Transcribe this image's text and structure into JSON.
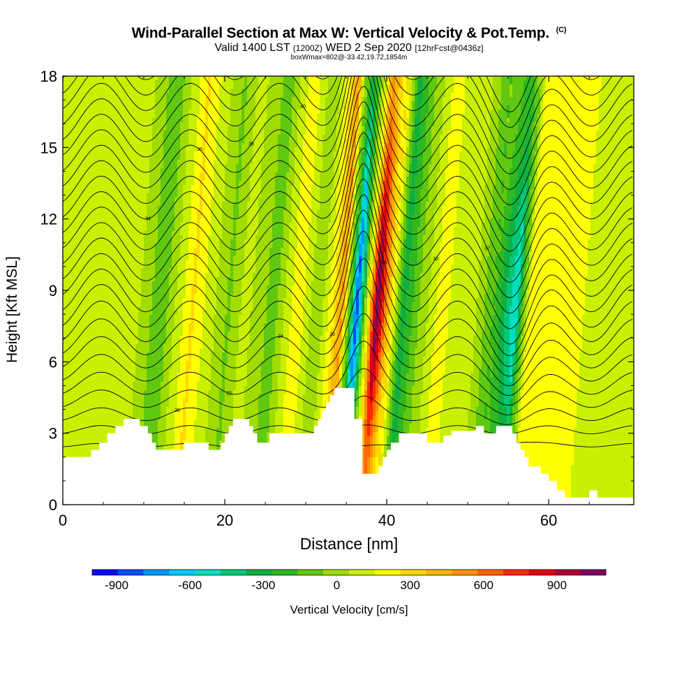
{
  "title": {
    "main": "Wind-Parallel Section at Max W: Vertical Velocity & Pot.Temp.",
    "copyright": "(C)",
    "valid_prefix": "Valid 1400 LST",
    "valid_utc": "(1200Z)",
    "valid_date": "WED 2 Sep 2020",
    "forecast": "[12hrFcst@0436z]",
    "box": "boxWmax=802@-33.42,19.72,1854m"
  },
  "colors": {
    "background": "#ffffff",
    "terrain": "#ffffff",
    "contour": "#000000",
    "palette": [
      "#0a0aff",
      "#0050ff",
      "#0096ff",
      "#00c8ff",
      "#00e0c0",
      "#00c878",
      "#10b040",
      "#30b820",
      "#60c810",
      "#a0dc00",
      "#c8f000",
      "#ffff00",
      "#ffd800",
      "#ffb400",
      "#ff9000",
      "#ff6400",
      "#ff2800",
      "#e00010",
      "#b00030",
      "#800060"
    ]
  },
  "chart_data": {
    "type": "contour-section",
    "title": "Wind-Parallel Section at Max W: Vertical Velocity & Pot.Temp.",
    "xlabel": "Distance [nm]",
    "ylabel": "Height [Kft MSL]",
    "xlim": [
      0,
      70.5
    ],
    "ylim": [
      0,
      18
    ],
    "x_ticks": [
      "0",
      "20",
      "40",
      "60"
    ],
    "y_ticks": [
      "0",
      "3",
      "6",
      "9",
      "12",
      "15",
      "18"
    ],
    "colorbar": {
      "label": "Vertical Velocity [cm/s]",
      "range": [
        -1000,
        1100
      ],
      "step": 100,
      "tick_labels": [
        "-900",
        "-600",
        "-300",
        "0",
        "300",
        "600",
        "900"
      ],
      "tick_values": [
        -900,
        -600,
        -300,
        0,
        300,
        600,
        900
      ]
    },
    "terrain_kft": [
      [
        0,
        2
      ],
      [
        3.5,
        2
      ],
      [
        3.5,
        2.3
      ],
      [
        4.5,
        2.3
      ],
      [
        4.5,
        2.6
      ],
      [
        5.5,
        2.6
      ],
      [
        5.5,
        3
      ],
      [
        6.5,
        3
      ],
      [
        6.5,
        3.3
      ],
      [
        7.5,
        3.3
      ],
      [
        7.5,
        3.6
      ],
      [
        9.5,
        3.6
      ],
      [
        9.5,
        3.3
      ],
      [
        10.5,
        3.3
      ],
      [
        10.5,
        3
      ],
      [
        11,
        3
      ],
      [
        11,
        2.6
      ],
      [
        11.5,
        2.6
      ],
      [
        11.5,
        2.3
      ],
      [
        15,
        2.3
      ],
      [
        15,
        2.6
      ],
      [
        18,
        2.6
      ],
      [
        18,
        2.3
      ],
      [
        19.5,
        2.3
      ],
      [
        19.5,
        2.6
      ],
      [
        20,
        2.6
      ],
      [
        20,
        3
      ],
      [
        20.5,
        3
      ],
      [
        20.5,
        3.3
      ],
      [
        21,
        3.3
      ],
      [
        21,
        3.6
      ],
      [
        23,
        3.6
      ],
      [
        23,
        3.3
      ],
      [
        23.5,
        3.3
      ],
      [
        23.5,
        3
      ],
      [
        24,
        3
      ],
      [
        24,
        2.6
      ],
      [
        25.5,
        2.6
      ],
      [
        25.5,
        3
      ],
      [
        31,
        3
      ],
      [
        31,
        3.3
      ],
      [
        31.5,
        3.3
      ],
      [
        31.5,
        3.6
      ],
      [
        32,
        3.6
      ],
      [
        32,
        4
      ],
      [
        32.5,
        4
      ],
      [
        32.5,
        4.3
      ],
      [
        33,
        4.3
      ],
      [
        33,
        4.6
      ],
      [
        33.5,
        4.6
      ],
      [
        33.5,
        4.9
      ],
      [
        36,
        4.9
      ],
      [
        36,
        3.6
      ],
      [
        37,
        3.6
      ],
      [
        37,
        1.3
      ],
      [
        39,
        1.3
      ],
      [
        39,
        1.6
      ],
      [
        39.5,
        1.6
      ],
      [
        39.5,
        2
      ],
      [
        40,
        2
      ],
      [
        40,
        2.3
      ],
      [
        40.5,
        2.3
      ],
      [
        40.5,
        2.6
      ],
      [
        41.5,
        2.6
      ],
      [
        41.5,
        3
      ],
      [
        45,
        3
      ],
      [
        45,
        2.6
      ],
      [
        47,
        2.6
      ],
      [
        47,
        2.9
      ],
      [
        48,
        2.9
      ],
      [
        48,
        3.1
      ],
      [
        51,
        3.1
      ],
      [
        51,
        3.3
      ],
      [
        52,
        3.3
      ],
      [
        52,
        3
      ],
      [
        53.5,
        3
      ],
      [
        53.5,
        3.3
      ],
      [
        55.5,
        3.3
      ],
      [
        55.5,
        3
      ],
      [
        56,
        3
      ],
      [
        56,
        2.6
      ],
      [
        56.5,
        2.6
      ],
      [
        56.5,
        2.3
      ],
      [
        57,
        2.3
      ],
      [
        57,
        2
      ],
      [
        57.5,
        2
      ],
      [
        57.5,
        1.6
      ],
      [
        59,
        1.6
      ],
      [
        59,
        1.3
      ],
      [
        60,
        1.3
      ],
      [
        60,
        1
      ],
      [
        61,
        1
      ],
      [
        61,
        0.6
      ],
      [
        62,
        0.6
      ],
      [
        62,
        0.3
      ],
      [
        65,
        0.3
      ],
      [
        65,
        0.6
      ],
      [
        66,
        0.6
      ],
      [
        66,
        0.3
      ],
      [
        70.5,
        0.3
      ]
    ],
    "w_band_centers_nm": [
      1,
      4,
      8.5,
      11.5,
      15.5,
      20,
      22,
      25.5,
      28.5,
      31,
      34,
      35.8,
      38.3,
      41.5,
      46,
      50,
      55.5,
      57,
      62,
      66
    ],
    "w_band_values_cms": [
      50,
      30,
      30,
      -200,
      220,
      -120,
      40,
      -160,
      200,
      -100,
      420,
      -900,
      1000,
      -350,
      140,
      60,
      -600,
      110,
      180,
      80
    ],
    "theta_contours_degC": [
      18,
      20,
      22,
      24,
      26,
      28,
      30,
      32,
      34,
      36,
      38,
      40
    ],
    "theta_labels": [
      "18",
      "20",
      "22",
      "24",
      "26",
      "28",
      "30",
      "32",
      "34",
      "36",
      "38",
      "40"
    ]
  }
}
